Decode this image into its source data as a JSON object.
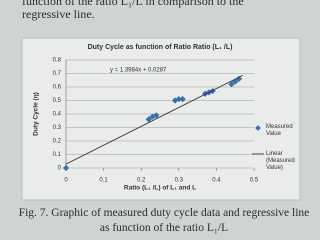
{
  "text_top": [
    "function of the ratio L₁/L in comparison to the",
    "regressive line."
  ],
  "chart_data": {
    "type": "scatter",
    "title": "Duty Cycle as function of Ratio Ratio (L₁ /L)",
    "x_label": "Ratio (L₁ /L) of L₁ and L",
    "y_label": "Duty Cycle (η)",
    "annotation": "y = 1.3984x + 0.0287",
    "xlim": [
      0,
      0.5
    ],
    "xticks": [
      0,
      0.1,
      0.2,
      0.3,
      0.4,
      0.5
    ],
    "ylim": [
      0,
      0.8
    ],
    "yticks": [
      0,
      0.1,
      0.2,
      0.3,
      0.4,
      0.5,
      0.6,
      0.7,
      0.8
    ],
    "grid": true,
    "series": [
      {
        "name": "Measured Value",
        "color": "#3b6fb5",
        "x": [
          0,
          0.22,
          0.23,
          0.24,
          0.29,
          0.3,
          0.31,
          0.37,
          0.38,
          0.39,
          0.44,
          0.45,
          0.46
        ],
        "values": [
          0,
          0.36,
          0.38,
          0.39,
          0.5,
          0.51,
          0.51,
          0.55,
          0.56,
          0.57,
          0.62,
          0.64,
          0.66
        ]
      },
      {
        "name": "Linear (Measured Value)",
        "color": "#333333",
        "x": [
          0,
          0.47
        ],
        "values": [
          0.0287,
          0.686
        ]
      }
    ]
  },
  "caption": "Fig. 7. Graphic of measured duty cycle data and regressive line as function of the ratio L₁/L"
}
